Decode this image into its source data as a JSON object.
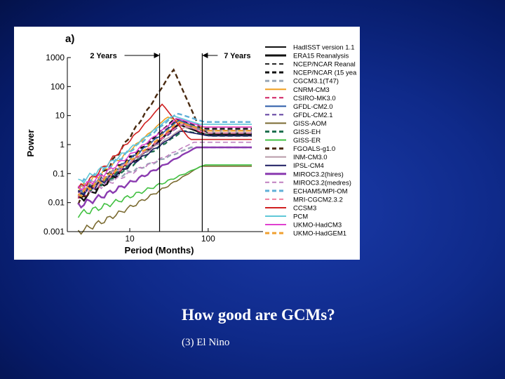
{
  "slide": {
    "title": "How good are GCMs?",
    "subtitle": "(3) El Nino"
  },
  "chart_data": {
    "type": "line",
    "panel_label": "a)",
    "xlabel": "Period (Months)",
    "ylabel": "Power",
    "x_scale": "log",
    "y_scale": "log",
    "xlim": [
      1.6,
      500
    ],
    "ylim": [
      0.001,
      1000
    ],
    "x_ticks": [
      {
        "value": 10,
        "label": "10"
      },
      {
        "value": 100,
        "label": "100"
      }
    ],
    "y_ticks": [
      {
        "value": 1000,
        "label": "1000"
      },
      {
        "value": 100,
        "label": "100"
      },
      {
        "value": 10,
        "label": "10"
      },
      {
        "value": 1,
        "label": "1"
      },
      {
        "value": 0.1,
        "label": "0.1"
      },
      {
        "value": 0.01,
        "label": "0.01"
      },
      {
        "value": 0.001,
        "label": "0.001"
      }
    ],
    "reference_lines": [
      {
        "x": 24,
        "label": "2 Years",
        "arrow": "left"
      },
      {
        "x": 84,
        "label": "7 Years",
        "arrow": "right"
      }
    ],
    "legend_position": "right",
    "series": [
      {
        "name": "HadISST version 1.1",
        "color": "#111111",
        "style": "solid",
        "peak": 6,
        "peak_x": 45,
        "low": 0.015,
        "plateau": 2.5
      },
      {
        "name": "ERA15 Reanalysis",
        "color": "#111111",
        "style": "solid-thick",
        "peak": 5,
        "peak_x": 42,
        "low": 0.012,
        "plateau": 2.2
      },
      {
        "name": "NCEP/NCAR Reanal",
        "color": "#222222",
        "style": "dashed",
        "peak": 7,
        "peak_x": 40,
        "low": 0.02,
        "plateau": 3
      },
      {
        "name": "NCEP/NCAR (15 yea",
        "color": "#111111",
        "style": "dashed-thick",
        "peak": 8,
        "peak_x": 38,
        "low": 0.018,
        "plateau": 3.5
      },
      {
        "name": "CGCM3.1(T47)",
        "color": "#9aa8b8",
        "style": "dashed-thick",
        "peak": 0.8,
        "peak_x": 60,
        "low": 0.03,
        "plateau": 0.8
      },
      {
        "name": "CNRM-CM3",
        "color": "#f0a020",
        "style": "solid",
        "peak": 9,
        "peak_x": 30,
        "low": 0.03,
        "plateau": 4
      },
      {
        "name": "CSIRO-MK3.0",
        "color": "#d02060",
        "style": "dashed",
        "peak": 6,
        "peak_x": 44,
        "low": 0.015,
        "plateau": 2
      },
      {
        "name": "GFDL-CM2.0",
        "color": "#2a5aa8",
        "style": "solid",
        "peak": 7,
        "peak_x": 42,
        "low": 0.02,
        "plateau": 3
      },
      {
        "name": "GFDL-CM2.1",
        "color": "#6040a0",
        "style": "dashed",
        "peak": 5,
        "peak_x": 46,
        "low": 0.018,
        "plateau": 2.5
      },
      {
        "name": "GISS-AOM",
        "color": "#7a6a30",
        "style": "solid",
        "peak": 0.18,
        "peak_x": 80,
        "low": 0.001,
        "plateau": 0.18
      },
      {
        "name": "GISS-EH",
        "color": "#207050",
        "style": "dashed-thick",
        "peak": 3,
        "peak_x": 48,
        "low": 0.02,
        "plateau": 2
      },
      {
        "name": "GISS-ER",
        "color": "#40c040",
        "style": "solid",
        "peak": 0.2,
        "peak_x": 90,
        "low": 0.004,
        "plateau": 0.2
      },
      {
        "name": "FGOALS-g1.0",
        "color": "#4a2a10",
        "style": "dashed-thick",
        "peak": 400,
        "peak_x": 36,
        "low": 0.01,
        "plateau": 3
      },
      {
        "name": "INM-CM3.0",
        "color": "#b89aa8",
        "style": "solid",
        "peak": 4,
        "peak_x": 50,
        "low": 0.03,
        "plateau": 3
      },
      {
        "name": "IPSL-CM4",
        "color": "#1a1a60",
        "style": "solid",
        "peak": 3,
        "peak_x": 45,
        "low": 0.02,
        "plateau": 2
      },
      {
        "name": "MIROC3.2(hires)",
        "color": "#8a3ab0",
        "style": "solid-thick",
        "peak": 0.8,
        "peak_x": 70,
        "low": 0.008,
        "plateau": 0.8
      },
      {
        "name": "MIROC3.2(medres)",
        "color": "#c080c0",
        "style": "dashed",
        "peak": 1.2,
        "peak_x": 65,
        "low": 0.02,
        "plateau": 1.2
      },
      {
        "name": "ECHAM5/MPI-OM",
        "color": "#60b0d8",
        "style": "dashed-thick",
        "peak": 12,
        "peak_x": 40,
        "low": 0.04,
        "plateau": 6
      },
      {
        "name": "MRI-CGCM2.3.2",
        "color": "#f080a0",
        "style": "dashed",
        "peak": 5,
        "peak_x": 44,
        "low": 0.02,
        "plateau": 2.5
      },
      {
        "name": "CCSM3",
        "color": "#d02020",
        "style": "solid",
        "peak": 25,
        "peak_x": 26,
        "low": 0.03,
        "plateau": 1.5
      },
      {
        "name": "PCM",
        "color": "#60c8d8",
        "style": "solid",
        "peak": 10,
        "peak_x": 35,
        "low": 0.05,
        "plateau": 5
      },
      {
        "name": "UKMO-HadCM3",
        "color": "#e040d0",
        "style": "solid",
        "peak": 8,
        "peak_x": 40,
        "low": 0.03,
        "plateau": 4
      },
      {
        "name": "UKMO-HadGEM1",
        "color": "#f0a030",
        "style": "dashed-thick",
        "peak": 6,
        "peak_x": 42,
        "low": 0.02,
        "plateau": 3
      }
    ]
  }
}
